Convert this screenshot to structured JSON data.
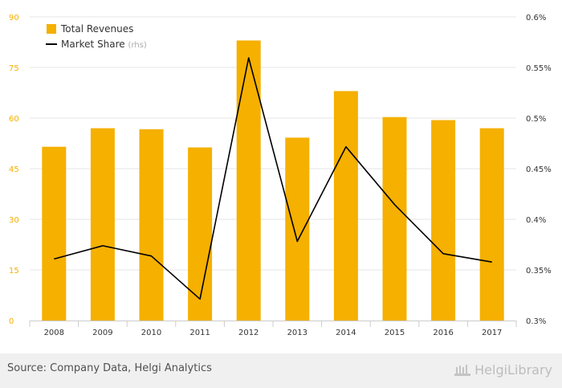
{
  "chart_data": {
    "type": "bar",
    "categories": [
      "2008",
      "2009",
      "2010",
      "2011",
      "2012",
      "2013",
      "2014",
      "2015",
      "2016",
      "2017"
    ],
    "series": [
      {
        "name": "Total Revenues",
        "type": "bar",
        "axis": "left",
        "color": "#f5b000",
        "values": [
          51.5,
          57,
          56.7,
          51.3,
          83,
          54.2,
          68,
          60.3,
          59.4,
          57
        ]
      },
      {
        "name": "Market Share",
        "name_suffix": "(rhs)",
        "type": "line",
        "axis": "right",
        "color": "#000000",
        "values": [
          0.3608,
          0.3739,
          0.3637,
          0.3212,
          0.5595,
          0.3782,
          0.4717,
          0.4145,
          0.366,
          0.3578
        ]
      }
    ],
    "left_axis": {
      "min": 0,
      "max": 90,
      "ticks": [
        "0",
        "15",
        "30",
        "45",
        "60",
        "75",
        "90"
      ],
      "tick_values": [
        0,
        15,
        30,
        45,
        60,
        75,
        90
      ],
      "color": "#f5b000"
    },
    "right_axis": {
      "min": 0.3,
      "max": 0.6,
      "ticks": [
        "0.3%",
        "0.35%",
        "0.4%",
        "0.45%",
        "0.5%",
        "0.55%",
        "0.6%"
      ],
      "tick_values": [
        0.3,
        0.35,
        0.4,
        0.45,
        0.5,
        0.55,
        0.6
      ]
    },
    "grid": true,
    "legend_position": "top-left"
  },
  "footer": {
    "source": "Source: Company Data, Helgi Analytics",
    "logo": "HelgiLibrary"
  }
}
